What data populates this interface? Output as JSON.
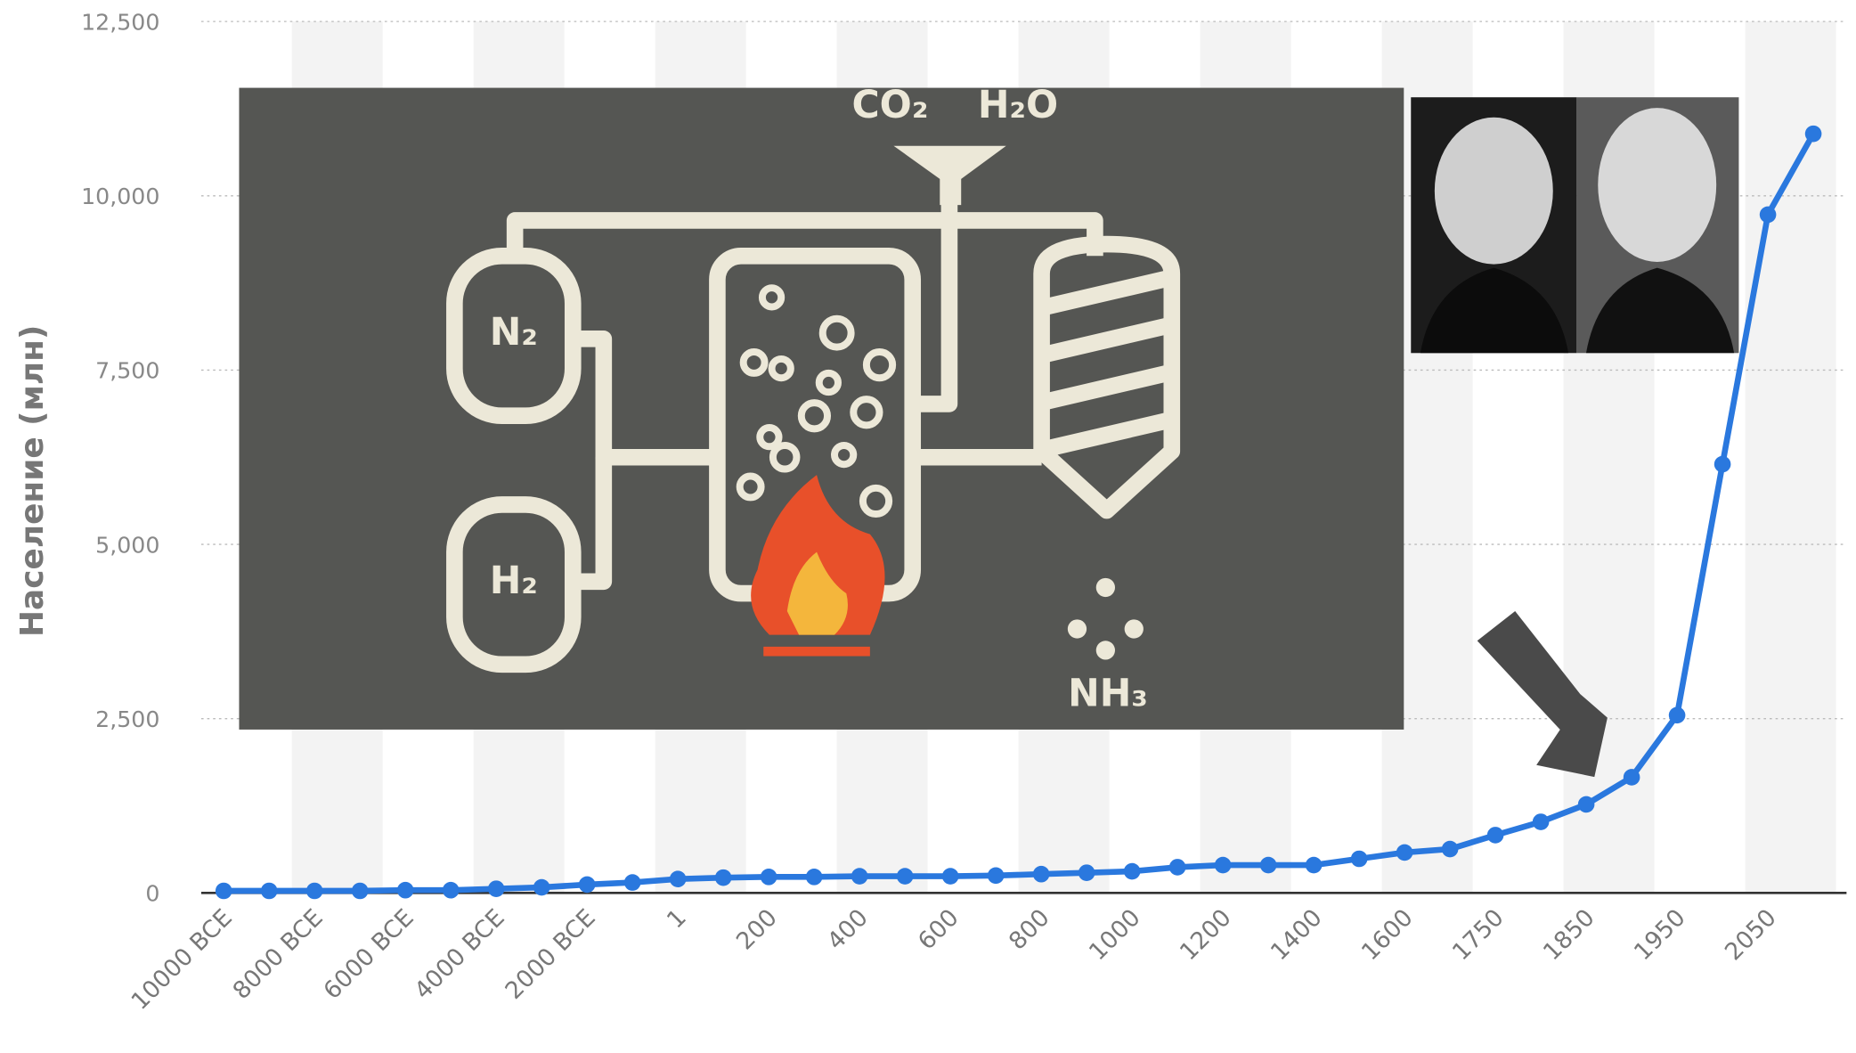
{
  "chart_data": {
    "type": "line",
    "ylabel": "Население (млн)",
    "categories": [
      "10000 BCE",
      null,
      "8000 BCE",
      null,
      "6000 BCE",
      null,
      "4000 BCE",
      null,
      "2000 BCE",
      null,
      "1",
      null,
      "200",
      null,
      "400",
      null,
      "600",
      null,
      "800",
      null,
      "1000",
      null,
      "1200",
      null,
      "1400",
      null,
      "1600",
      null,
      "1750",
      null,
      "1850",
      null,
      "1950",
      null,
      "2050",
      null
    ],
    "series": [
      {
        "name": "Население",
        "color": "#2a78de",
        "values": [
          30,
          30,
          30,
          30,
          40,
          40,
          60,
          80,
          120,
          150,
          200,
          220,
          230,
          230,
          240,
          240,
          240,
          250,
          270,
          290,
          310,
          370,
          400,
          400,
          400,
          490,
          580,
          630,
          830,
          1020,
          1270,
          1660,
          2550,
          6150,
          9730,
          10890
        ]
      }
    ],
    "ylim": [
      0,
      12500
    ],
    "yticks": [
      0,
      {
        "value": 2500,
        "label": "2,500"
      },
      {
        "value": 5000,
        "label": "5,000"
      },
      {
        "value": 7500,
        "label": "7,500"
      },
      {
        "value": 10000,
        "label": "10,000"
      },
      {
        "value": 12500,
        "label": "12,500"
      }
    ],
    "grid": true
  },
  "diagram": {
    "n2": "N₂",
    "h2": "H₂",
    "co2": "CO₂",
    "h2o": "H₂O",
    "nh3": "NH₃"
  }
}
